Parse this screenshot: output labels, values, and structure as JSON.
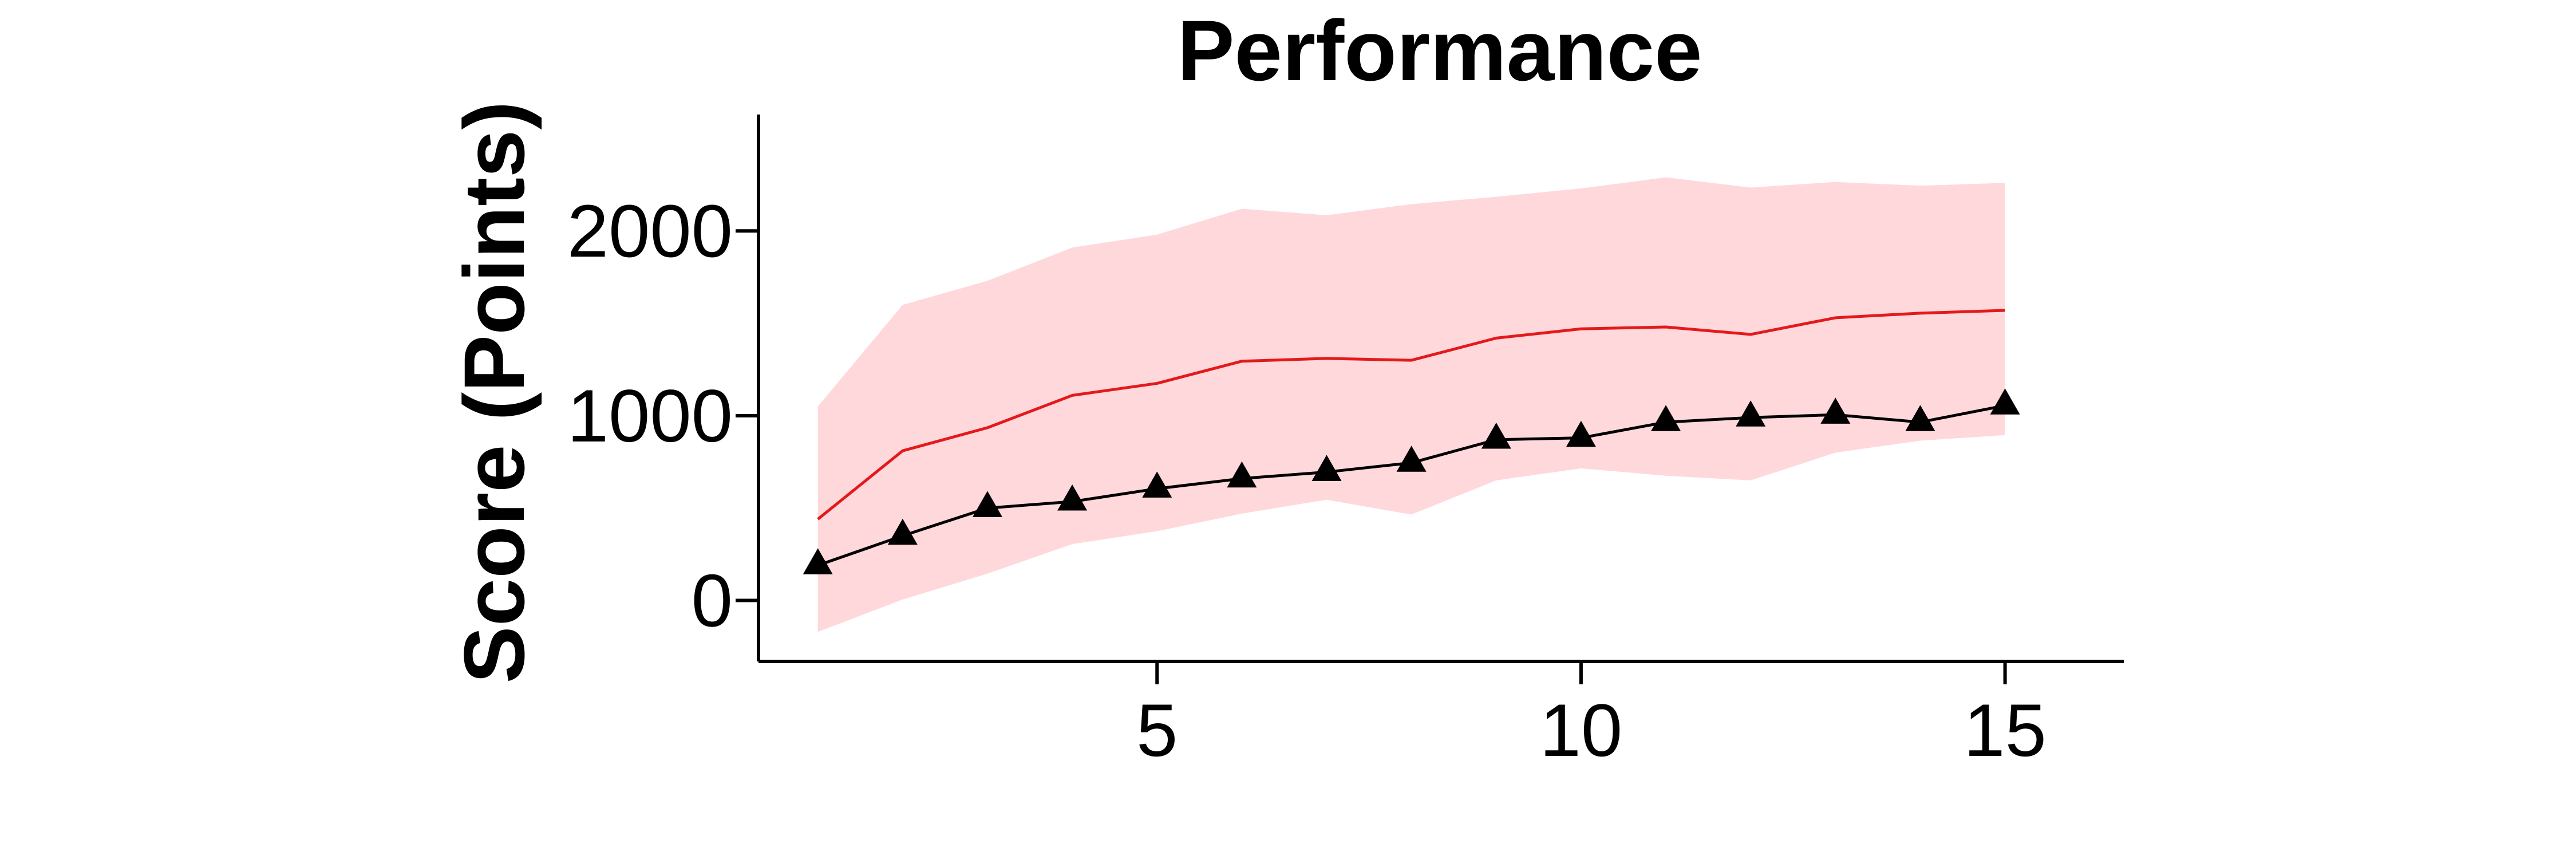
{
  "chart_data": {
    "type": "line",
    "title": "Performance",
    "xlabel": "",
    "ylabel": "Score (Points)",
    "xlim": [
      0.3,
      16.4
    ],
    "ylim": [
      -330,
      2630
    ],
    "x_ticks": [
      5,
      10,
      15
    ],
    "y_ticks": [
      0,
      1000,
      2000
    ],
    "x_tick_labels": [
      "5",
      "10",
      "15"
    ],
    "y_tick_labels": [
      "0",
      "1000",
      "2000"
    ],
    "grid": false,
    "legend": "none",
    "x": [
      1,
      2,
      3,
      4,
      5,
      6,
      7,
      8,
      9,
      10,
      11,
      12,
      13,
      14,
      15
    ],
    "series": [
      {
        "kind": "line",
        "color": "#e31a1c",
        "values": [
          440,
          810,
          935,
          1110,
          1175,
          1295,
          1310,
          1300,
          1420,
          1470,
          1480,
          1440,
          1530,
          1555,
          1570
        ]
      },
      {
        "kind": "band",
        "color": "#ffd8dc",
        "upper": [
          1050,
          1600,
          1730,
          1910,
          1980,
          2120,
          2085,
          2145,
          2185,
          2230,
          2290,
          2235,
          2265,
          2245,
          2260
        ],
        "lower": [
          -170,
          5,
          145,
          305,
          375,
          470,
          545,
          465,
          650,
          715,
          675,
          650,
          800,
          865,
          895
        ]
      },
      {
        "kind": "line",
        "color": "#000000",
        "marker": "triangle",
        "values": [
          190,
          350,
          500,
          535,
          605,
          660,
          695,
          745,
          870,
          880,
          965,
          990,
          1005,
          965,
          1055
        ]
      }
    ]
  }
}
